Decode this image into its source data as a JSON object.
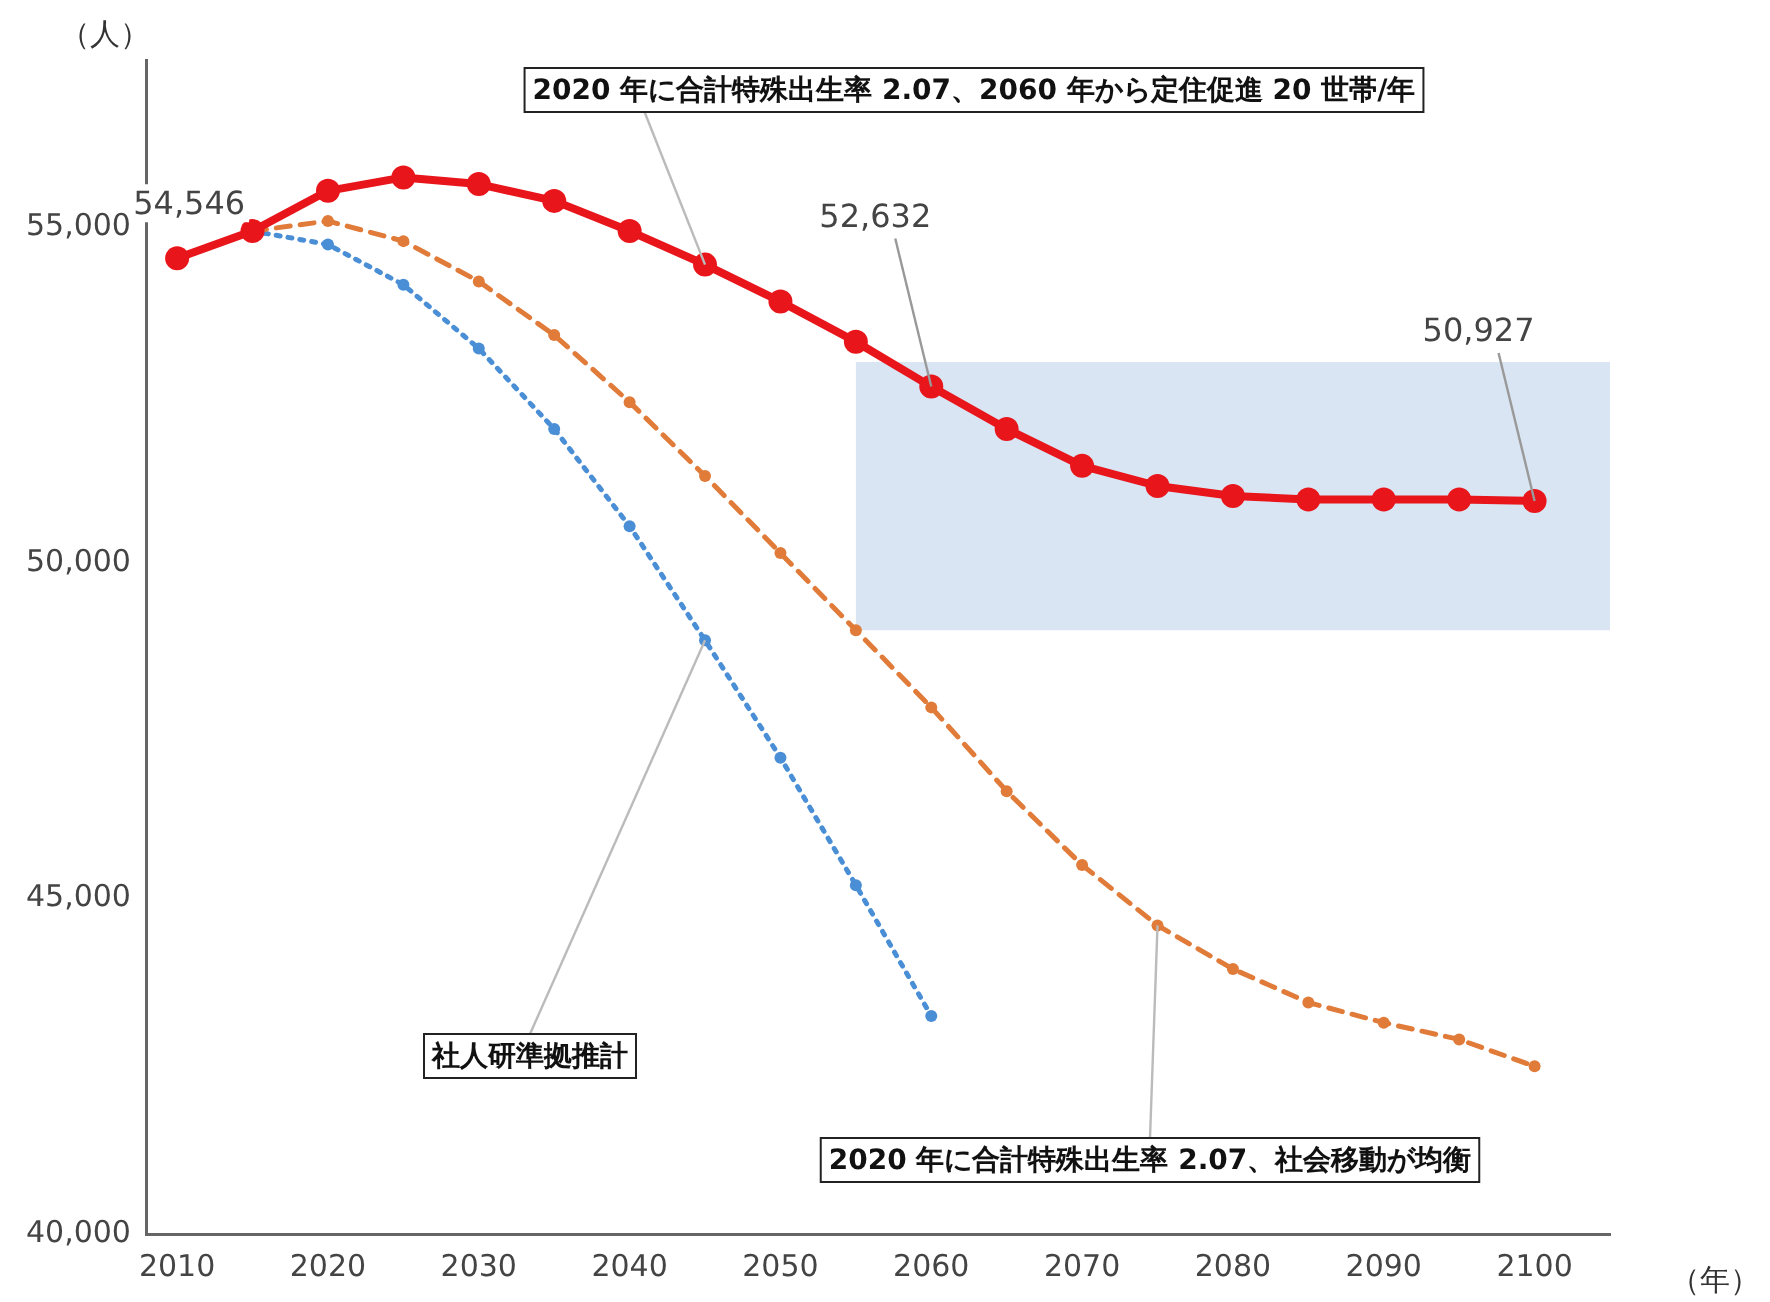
{
  "chart_data": {
    "type": "line",
    "xlabel": "（年）",
    "ylabel": "（人）",
    "xlim": [
      2008,
      2105
    ],
    "xticks": [
      2010,
      2020,
      2030,
      2040,
      2050,
      2060,
      2070,
      2080,
      2090,
      2100
    ],
    "ylim": [
      40000,
      57500
    ],
    "yticks": [
      {
        "value": 40000,
        "label": "40,000"
      },
      {
        "value": 45000,
        "label": "45,000"
      },
      {
        "value": 50000,
        "label": "50,000"
      },
      {
        "value": 55000,
        "label": "55,000"
      }
    ],
    "grid": false,
    "legend": false,
    "marker": "circle",
    "bands": [
      {
        "axis": "x",
        "from": 2055,
        "to": 2105,
        "color": "#dae5f3"
      }
    ],
    "series": [
      {
        "name": "2020 年に合計特殊出生率 2.07、2060 年から定住促進 20 世帯/年",
        "color": "#e8151b",
        "line_style": "solid",
        "x": [
          2010,
          2015,
          2020,
          2025,
          2030,
          2035,
          2040,
          2045,
          2050,
          2055,
          2060,
          2065,
          2070,
          2075,
          2080,
          2085,
          2090,
          2095,
          2100
        ],
        "values": [
          54546,
          54950,
          55550,
          55750,
          55650,
          55400,
          54950,
          54450,
          53900,
          53300,
          52632,
          52000,
          51450,
          51150,
          51000,
          50950,
          50950,
          50950,
          50927
        ],
        "value_labels": [
          "54,546",
          null,
          null,
          null,
          null,
          null,
          null,
          null,
          null,
          null,
          "52,632",
          null,
          null,
          null,
          null,
          null,
          null,
          null,
          "50,927"
        ]
      },
      {
        "name": "2020 年に合計特殊出生率 2.07、社会移動が均衡",
        "color": "#e07b39",
        "line_style": "dashed",
        "x": [
          2015,
          2020,
          2025,
          2030,
          2035,
          2040,
          2045,
          2050,
          2055,
          2060,
          2065,
          2070,
          2075,
          2080,
          2085,
          2090,
          2095,
          2100
        ],
        "values": [
          54950,
          55100,
          54800,
          54200,
          53400,
          52400,
          51300,
          50150,
          49000,
          47850,
          46600,
          45500,
          44600,
          43950,
          43450,
          43150,
          42900,
          42500
        ]
      },
      {
        "name": "社人研準拠推計",
        "color": "#4a8fd6",
        "line_style": "dotted",
        "x": [
          2015,
          2020,
          2025,
          2030,
          2035,
          2040,
          2045,
          2050,
          2055,
          2060
        ],
        "values": [
          54950,
          54750,
          54150,
          53200,
          52000,
          50550,
          48850,
          47100,
          45200,
          43250
        ]
      }
    ]
  }
}
